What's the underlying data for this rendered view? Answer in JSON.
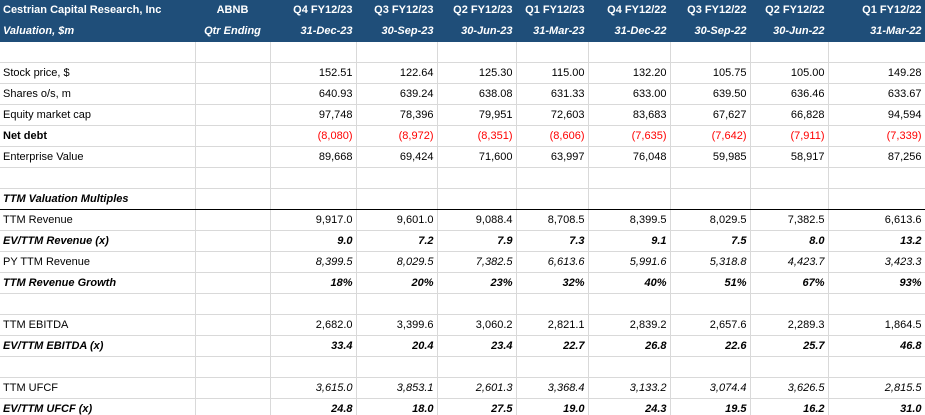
{
  "header": {
    "company": "Cestrian Capital Research, Inc",
    "ticker": "ABNB",
    "valuation_label": "Valuation, $m",
    "period_label": "Qtr Ending",
    "quarters": [
      "Q4 FY12/23",
      "Q3 FY12/23",
      "Q2 FY12/23",
      "Q1 FY12/23",
      "Q4 FY12/22",
      "Q3 FY12/22",
      "Q2 FY12/22",
      "Q1 FY12/22"
    ],
    "dates": [
      "31-Dec-23",
      "30-Sep-23",
      "30-Jun-23",
      "31-Mar-23",
      "31-Dec-22",
      "30-Sep-22",
      "30-Jun-22",
      "31-Mar-22"
    ]
  },
  "rows": {
    "stock_price": {
      "label": "Stock price, $",
      "values": [
        "152.51",
        "122.64",
        "125.30",
        "115.00",
        "132.20",
        "105.75",
        "105.00",
        "149.28"
      ]
    },
    "shares": {
      "label": "Shares o/s, m",
      "values": [
        "640.93",
        "639.24",
        "638.08",
        "631.33",
        "633.00",
        "639.50",
        "636.46",
        "633.67"
      ]
    },
    "market_cap": {
      "label": "Equity market cap",
      "values": [
        "97,748",
        "78,396",
        "79,951",
        "72,603",
        "83,683",
        "67,627",
        "66,828",
        "94,594"
      ]
    },
    "net_debt": {
      "label": "Net debt",
      "values": [
        "(8,080)",
        "(8,972)",
        "(8,351)",
        "(8,606)",
        "(7,635)",
        "(7,642)",
        "(7,911)",
        "(7,339)"
      ]
    },
    "ev": {
      "label": "Enterprise Value",
      "values": [
        "89,668",
        "69,424",
        "71,600",
        "63,997",
        "76,048",
        "59,985",
        "58,917",
        "87,256"
      ]
    },
    "ttm_section": {
      "label": "TTM Valuation Multiples"
    },
    "ttm_revenue": {
      "label": "TTM Revenue",
      "values": [
        "9,917.0",
        "9,601.0",
        "9,088.4",
        "8,708.5",
        "8,399.5",
        "8,029.5",
        "7,382.5",
        "6,613.6"
      ]
    },
    "ev_revenue": {
      "label": "EV/TTM Revenue (x)",
      "values": [
        "9.0",
        "7.2",
        "7.9",
        "7.3",
        "9.1",
        "7.5",
        "8.0",
        "13.2"
      ]
    },
    "py_revenue": {
      "label": "PY TTM Revenue",
      "values": [
        "8,399.5",
        "8,029.5",
        "7,382.5",
        "6,613.6",
        "5,991.6",
        "5,318.8",
        "4,423.7",
        "3,423.3"
      ]
    },
    "rev_growth": {
      "label": "TTM Revenue Growth",
      "values": [
        "18%",
        "20%",
        "23%",
        "32%",
        "40%",
        "51%",
        "67%",
        "93%"
      ]
    },
    "ttm_ebitda": {
      "label": "TTM EBITDA",
      "values": [
        "2,682.0",
        "3,399.6",
        "3,060.2",
        "2,821.1",
        "2,839.2",
        "2,657.6",
        "2,289.3",
        "1,864.5"
      ]
    },
    "ev_ebitda": {
      "label": "EV/TTM EBITDA (x)",
      "values": [
        "33.4",
        "20.4",
        "23.4",
        "22.7",
        "26.8",
        "22.6",
        "25.7",
        "46.8"
      ]
    },
    "ttm_ufcf": {
      "label": "TTM UFCF",
      "values": [
        "3,615.0",
        "3,853.1",
        "2,601.3",
        "3,368.4",
        "3,133.2",
        "3,074.4",
        "3,626.5",
        "2,815.5"
      ]
    },
    "ev_ufcf": {
      "label": "EV/TTM UFCF (x)",
      "values": [
        "24.8",
        "18.0",
        "27.5",
        "19.0",
        "24.3",
        "19.5",
        "16.2",
        "31.0"
      ]
    }
  },
  "colors": {
    "header_bg": "#1f4e79",
    "header_text": "#ffffff",
    "negative": "#ff0000"
  }
}
